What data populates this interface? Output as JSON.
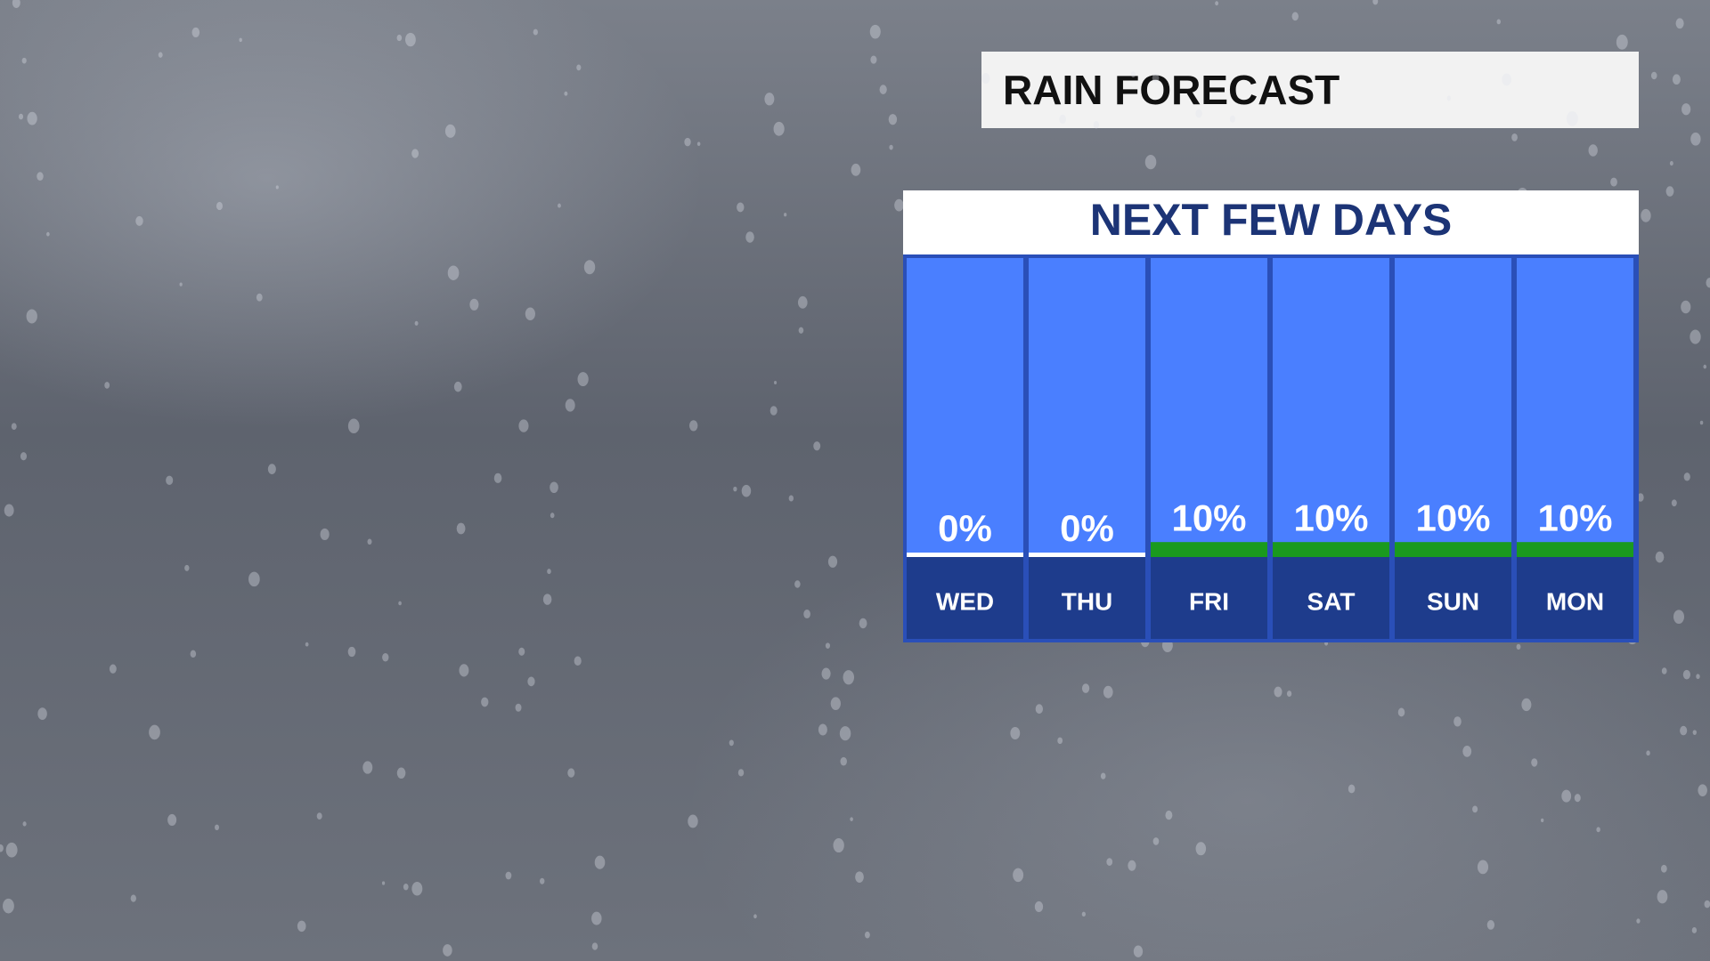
{
  "header": {
    "title": "RAIN FORECAST"
  },
  "chart_data": {
    "type": "bar",
    "title": "NEXT FEW DAYS",
    "categories": [
      "WED",
      "THU",
      "FRI",
      "SAT",
      "SUN",
      "MON"
    ],
    "values": [
      0,
      0,
      10,
      10,
      10,
      10
    ],
    "value_labels": [
      "0%",
      "0%",
      "10%",
      "10%",
      "10%",
      "10%"
    ],
    "colors": [
      "#ffffff",
      "#ffffff",
      "#1a9a1e",
      "#1a9a1e",
      "#1a9a1e",
      "#1a9a1e"
    ],
    "ylim": [
      0,
      100
    ]
  }
}
